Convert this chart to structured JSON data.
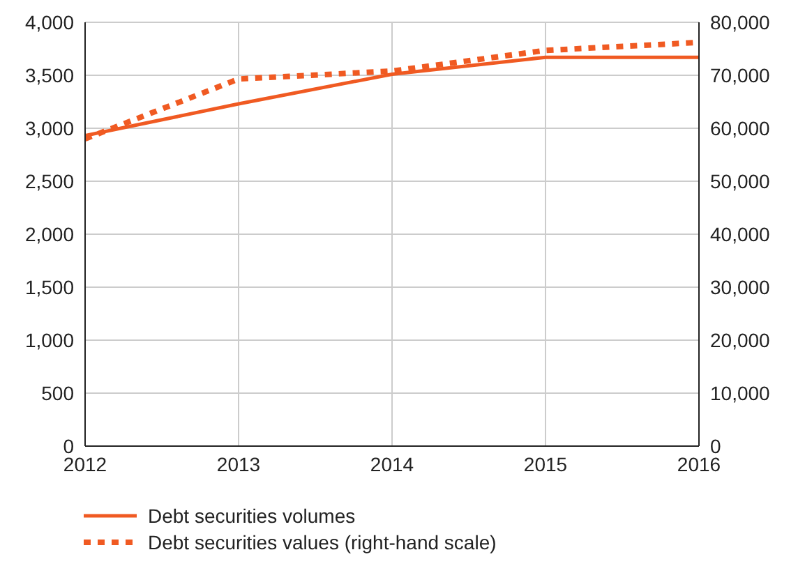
{
  "chart_data": {
    "type": "line",
    "x": [
      2012,
      2013,
      2014,
      2015,
      2016
    ],
    "xlim": [
      2012,
      2016
    ],
    "xticks": [
      2012,
      2013,
      2014,
      2015,
      2016
    ],
    "ylim": [
      0,
      4000
    ],
    "yticks": [
      {
        "value": 0,
        "label": "0"
      },
      {
        "value": 500,
        "label": "500"
      },
      {
        "value": 1000,
        "label": "1,000"
      },
      {
        "value": 1500,
        "label": "1,500"
      },
      {
        "value": 2000,
        "label": "2,000"
      },
      {
        "value": 2500,
        "label": "2,500"
      },
      {
        "value": 3000,
        "label": "3,000"
      },
      {
        "value": 3500,
        "label": "3,500"
      },
      {
        "value": 4000,
        "label": "4,000"
      }
    ],
    "y2lim": [
      0,
      80000
    ],
    "y2ticks": [
      {
        "value": 0,
        "label": "0"
      },
      {
        "value": 10000,
        "label": "10,000"
      },
      {
        "value": 20000,
        "label": "20,000"
      },
      {
        "value": 30000,
        "label": "30,000"
      },
      {
        "value": 40000,
        "label": "40,000"
      },
      {
        "value": 50000,
        "label": "50,000"
      },
      {
        "value": 60000,
        "label": "60,000"
      },
      {
        "value": 70000,
        "label": "70,000"
      },
      {
        "value": 80000,
        "label": "80,000"
      }
    ],
    "grid": true,
    "legend": "bottom",
    "marker": "none",
    "series": [
      {
        "name": "Debt securities volumes",
        "color": "#f05a22",
        "line_style": "solid",
        "values": [
          2930,
          3230,
          3510,
          3670,
          3670
        ]
      },
      {
        "name": "Debt securities values (right-hand scale)",
        "color": "#f05a22",
        "line_style": "dotted",
        "axis": "y2",
        "values": [
          58000,
          69300,
          70800,
          74700,
          76200
        ]
      }
    ]
  }
}
